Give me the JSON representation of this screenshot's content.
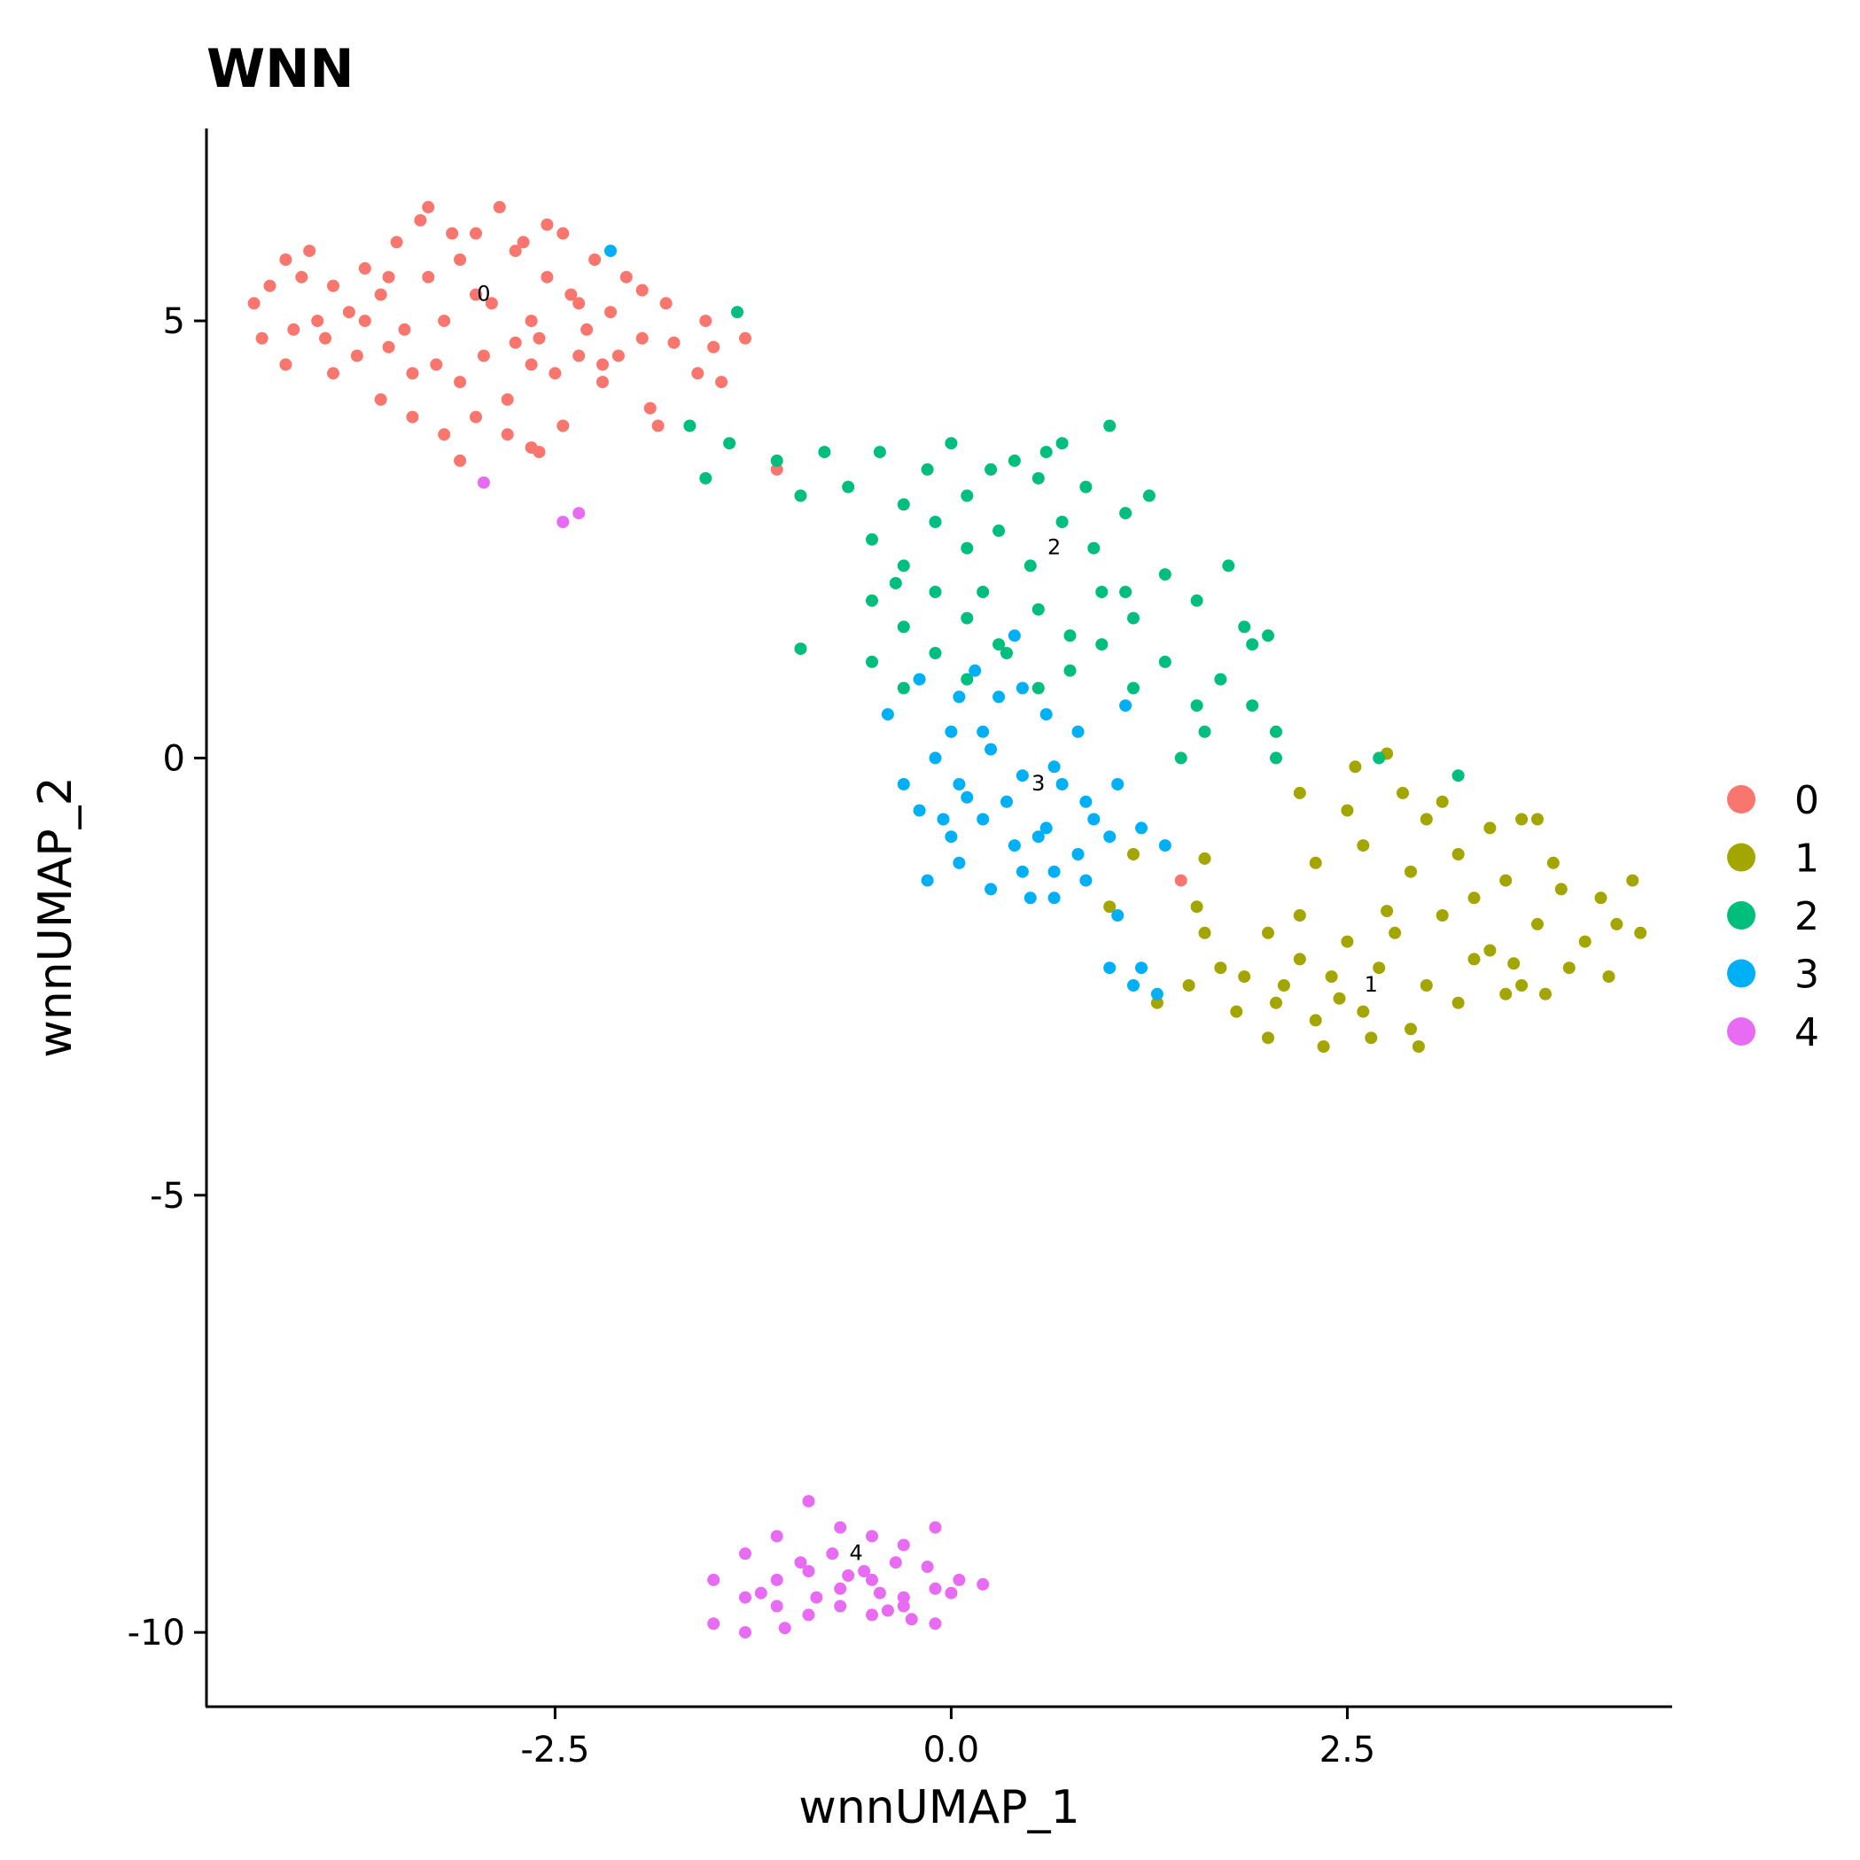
{
  "chart_data": {
    "type": "scatter",
    "title": "WNN",
    "xlabel": "wnnUMAP_1",
    "ylabel": "wnnUMAP_2",
    "xlim": [
      -4.7,
      4.55
    ],
    "ylim": [
      -10.85,
      7.2
    ],
    "x_ticks": [
      -2.5,
      0.0,
      2.5
    ],
    "x_tick_labels": [
      "-2.5",
      "0.0",
      "2.5"
    ],
    "y_ticks": [
      5,
      0,
      -5,
      -10
    ],
    "y_tick_labels": [
      "5",
      "0",
      "-5",
      "-10"
    ],
    "grid": false,
    "legend_position": "right",
    "series": [
      {
        "name": "0",
        "color": "#F8766D",
        "label_position": [
          -2.95,
          5.3
        ],
        "points": [
          [
            -4.4,
            5.2
          ],
          [
            -4.3,
            5.4
          ],
          [
            -4.2,
            5.7
          ],
          [
            -4.1,
            5.5
          ],
          [
            -4.05,
            5.8
          ],
          [
            -3.9,
            5.4
          ],
          [
            -3.8,
            5.1
          ],
          [
            -3.7,
            5.6
          ],
          [
            -3.6,
            5.3
          ],
          [
            -3.5,
            5.9
          ],
          [
            -3.45,
            4.9
          ],
          [
            -3.35,
            6.15
          ],
          [
            -3.3,
            5.5
          ],
          [
            -3.2,
            5.0
          ],
          [
            -3.1,
            5.7
          ],
          [
            -3.0,
            6.0
          ],
          [
            -2.9,
            5.2
          ],
          [
            -2.85,
            6.3
          ],
          [
            -2.75,
            5.8
          ],
          [
            -2.65,
            5.0
          ],
          [
            -2.55,
            5.5
          ],
          [
            -2.45,
            6.0
          ],
          [
            -2.35,
            5.2
          ],
          [
            -2.25,
            5.7
          ],
          [
            -2.15,
            5.1
          ],
          [
            -2.05,
            5.5
          ],
          [
            -1.95,
            5.35
          ],
          [
            -1.8,
            5.2
          ],
          [
            -4.35,
            4.8
          ],
          [
            -4.15,
            4.9
          ],
          [
            -3.95,
            4.8
          ],
          [
            -3.75,
            4.6
          ],
          [
            -3.55,
            4.7
          ],
          [
            -3.4,
            4.4
          ],
          [
            -3.25,
            4.5
          ],
          [
            -3.1,
            4.3
          ],
          [
            -2.95,
            4.6
          ],
          [
            -2.8,
            4.1
          ],
          [
            -2.65,
            4.5
          ],
          [
            -2.5,
            4.4
          ],
          [
            -2.35,
            4.6
          ],
          [
            -2.2,
            4.3
          ],
          [
            -4.2,
            4.5
          ],
          [
            -3.9,
            4.4
          ],
          [
            -3.6,
            4.1
          ],
          [
            -3.4,
            3.9
          ],
          [
            -3.2,
            3.7
          ],
          [
            -3.0,
            3.9
          ],
          [
            -2.8,
            3.7
          ],
          [
            -2.6,
            3.5
          ],
          [
            -2.45,
            3.8
          ],
          [
            -3.1,
            3.4
          ],
          [
            -2.65,
            3.55
          ],
          [
            -2.2,
            4.5
          ],
          [
            -2.1,
            4.6
          ],
          [
            -1.95,
            4.8
          ],
          [
            -1.9,
            4.0
          ],
          [
            -1.75,
            4.75
          ],
          [
            -1.6,
            4.4
          ],
          [
            -1.5,
            4.7
          ],
          [
            -1.45,
            4.3
          ],
          [
            -1.3,
            4.8
          ],
          [
            -1.55,
            5.0
          ],
          [
            -1.85,
            3.8
          ],
          [
            -3.3,
            6.3
          ],
          [
            -3.15,
            6.0
          ],
          [
            -3.0,
            5.3
          ],
          [
            -2.7,
            5.9
          ],
          [
            -2.55,
            6.1
          ],
          [
            -2.4,
            5.3
          ],
          [
            -2.3,
            4.9
          ],
          [
            -4.0,
            5.0
          ],
          [
            -3.7,
            5.0
          ],
          [
            -3.55,
            5.5
          ],
          [
            -2.75,
            4.75
          ],
          [
            -2.6,
            4.8
          ],
          [
            -1.1,
            3.3
          ],
          [
            1.45,
            -1.4
          ]
        ]
      },
      {
        "name": "1",
        "color": "#A3A500",
        "label_position": [
          2.65,
          -2.6
        ],
        "points": [
          [
            2.2,
            -0.4
          ],
          [
            2.55,
            -0.1
          ],
          [
            2.75,
            0.05
          ],
          [
            2.85,
            -0.4
          ],
          [
            3.1,
            -0.5
          ],
          [
            3.4,
            -0.8
          ],
          [
            3.6,
            -0.7
          ],
          [
            2.3,
            -1.2
          ],
          [
            2.6,
            -1.0
          ],
          [
            2.9,
            -1.3
          ],
          [
            3.2,
            -1.1
          ],
          [
            3.5,
            -1.4
          ],
          [
            3.8,
            -1.2
          ],
          [
            4.1,
            -1.6
          ],
          [
            4.3,
            -1.4
          ],
          [
            2.0,
            -2.0
          ],
          [
            2.2,
            -2.3
          ],
          [
            2.5,
            -2.1
          ],
          [
            2.8,
            -2.0
          ],
          [
            3.1,
            -1.8
          ],
          [
            3.4,
            -2.2
          ],
          [
            3.7,
            -1.9
          ],
          [
            4.0,
            -2.1
          ],
          [
            4.2,
            -1.9
          ],
          [
            4.35,
            -2.0
          ],
          [
            1.85,
            -2.5
          ],
          [
            2.1,
            -2.6
          ],
          [
            2.4,
            -2.5
          ],
          [
            2.7,
            -2.4
          ],
          [
            3.0,
            -2.6
          ],
          [
            3.3,
            -2.3
          ],
          [
            3.6,
            -2.6
          ],
          [
            3.9,
            -2.4
          ],
          [
            4.15,
            -2.5
          ],
          [
            1.8,
            -2.9
          ],
          [
            2.05,
            -2.8
          ],
          [
            2.3,
            -3.0
          ],
          [
            2.6,
            -2.9
          ],
          [
            2.9,
            -3.1
          ],
          [
            3.2,
            -2.8
          ],
          [
            3.5,
            -2.7
          ],
          [
            3.75,
            -2.7
          ],
          [
            2.0,
            -3.2
          ],
          [
            2.35,
            -3.3
          ],
          [
            2.65,
            -3.2
          ],
          [
            2.95,
            -3.3
          ],
          [
            1.55,
            -1.7
          ],
          [
            1.6,
            -2.0
          ],
          [
            1.7,
            -2.4
          ],
          [
            1.5,
            -2.6
          ],
          [
            1.3,
            -2.8
          ],
          [
            1.15,
            -1.1
          ],
          [
            1.0,
            -1.7
          ],
          [
            2.75,
            -1.75
          ],
          [
            3.0,
            -0.7
          ],
          [
            3.3,
            -1.6
          ],
          [
            3.55,
            -2.35
          ],
          [
            2.45,
            -2.75
          ],
          [
            2.2,
            -1.8
          ],
          [
            3.85,
            -1.5
          ],
          [
            1.6,
            -1.15
          ],
          [
            2.5,
            -0.6
          ],
          [
            3.7,
            -0.7
          ]
        ]
      },
      {
        "name": "2",
        "color": "#00BF7D",
        "label_position": [
          0.65,
          2.4
        ],
        "points": [
          [
            -1.35,
            5.1
          ],
          [
            -1.65,
            3.8
          ],
          [
            -1.4,
            3.6
          ],
          [
            -1.55,
            3.2
          ],
          [
            -1.1,
            3.4
          ],
          [
            -0.95,
            3.0
          ],
          [
            -0.8,
            3.5
          ],
          [
            -0.65,
            3.1
          ],
          [
            -0.45,
            3.5
          ],
          [
            -0.3,
            2.9
          ],
          [
            -0.15,
            3.3
          ],
          [
            0.0,
            3.6
          ],
          [
            0.1,
            3.0
          ],
          [
            0.25,
            3.3
          ],
          [
            0.4,
            3.4
          ],
          [
            0.55,
            3.2
          ],
          [
            0.7,
            3.6
          ],
          [
            0.85,
            3.1
          ],
          [
            1.0,
            3.8
          ],
          [
            -0.5,
            2.5
          ],
          [
            -0.3,
            2.2
          ],
          [
            -0.1,
            2.7
          ],
          [
            0.1,
            2.4
          ],
          [
            0.3,
            2.6
          ],
          [
            0.5,
            2.2
          ],
          [
            0.7,
            2.7
          ],
          [
            0.9,
            2.4
          ],
          [
            1.1,
            2.8
          ],
          [
            1.25,
            3.0
          ],
          [
            -0.5,
            1.8
          ],
          [
            -0.3,
            1.5
          ],
          [
            -0.1,
            1.9
          ],
          [
            0.1,
            1.6
          ],
          [
            0.3,
            1.3
          ],
          [
            0.55,
            1.7
          ],
          [
            0.75,
            1.4
          ],
          [
            0.95,
            1.9
          ],
          [
            1.15,
            1.6
          ],
          [
            1.35,
            2.1
          ],
          [
            1.55,
            1.8
          ],
          [
            1.75,
            2.2
          ],
          [
            1.85,
            1.5
          ],
          [
            -0.5,
            1.1
          ],
          [
            -0.3,
            0.8
          ],
          [
            -0.1,
            1.2
          ],
          [
            0.1,
            0.9
          ],
          [
            0.35,
            1.2
          ],
          [
            0.55,
            0.8
          ],
          [
            0.75,
            1.0
          ],
          [
            0.95,
            1.3
          ],
          [
            1.15,
            0.8
          ],
          [
            1.35,
            1.1
          ],
          [
            1.55,
            0.6
          ],
          [
            1.7,
            0.9
          ],
          [
            1.9,
            0.6
          ],
          [
            1.6,
            0.3
          ],
          [
            1.45,
            0.0
          ],
          [
            2.05,
            0.3
          ],
          [
            2.05,
            0.0
          ],
          [
            1.9,
            1.3
          ],
          [
            2.0,
            1.4
          ],
          [
            -0.95,
            1.25
          ],
          [
            0.6,
            3.5
          ],
          [
            1.1,
            1.9
          ],
          [
            -0.35,
            2.0
          ],
          [
            0.2,
            1.9
          ],
          [
            3.2,
            -0.2
          ],
          [
            2.7,
            0.0
          ]
        ]
      },
      {
        "name": "3",
        "color": "#00B0F6",
        "label_position": [
          0.55,
          -0.3
        ],
        "points": [
          [
            -0.4,
            0.5
          ],
          [
            -0.2,
            0.9
          ],
          [
            0.05,
            0.7
          ],
          [
            0.2,
            0.3
          ],
          [
            0.45,
            0.8
          ],
          [
            0.6,
            0.5
          ],
          [
            0.8,
            0.3
          ],
          [
            1.1,
            0.6
          ],
          [
            -0.1,
            0.0
          ],
          [
            0.05,
            -0.3
          ],
          [
            0.25,
            0.1
          ],
          [
            0.45,
            -0.2
          ],
          [
            0.65,
            -0.1
          ],
          [
            0.85,
            -0.5
          ],
          [
            1.05,
            -0.3
          ],
          [
            -0.2,
            -0.6
          ],
          [
            0.0,
            -0.9
          ],
          [
            0.2,
            -0.7
          ],
          [
            0.4,
            -1.0
          ],
          [
            0.6,
            -0.8
          ],
          [
            0.8,
            -1.1
          ],
          [
            1.0,
            -0.9
          ],
          [
            1.2,
            -0.8
          ],
          [
            1.35,
            -1.0
          ],
          [
            -0.15,
            -1.4
          ],
          [
            0.05,
            -1.2
          ],
          [
            0.25,
            -1.5
          ],
          [
            0.45,
            -1.3
          ],
          [
            0.65,
            -1.6
          ],
          [
            0.85,
            -1.4
          ],
          [
            1.05,
            -1.8
          ],
          [
            0.35,
            -0.5
          ],
          [
            0.55,
            -0.9
          ],
          [
            -0.3,
            -0.3
          ],
          [
            0.3,
            0.7
          ],
          [
            0.15,
            1.0
          ],
          [
            0.0,
            0.3
          ],
          [
            0.1,
            -0.45
          ],
          [
            0.7,
            -0.3
          ],
          [
            0.9,
            -0.7
          ],
          [
            0.5,
            -1.6
          ],
          [
            0.4,
            1.4
          ],
          [
            -2.15,
            5.8
          ],
          [
            1.0,
            -2.4
          ],
          [
            1.2,
            -2.4
          ],
          [
            1.3,
            -2.7
          ],
          [
            1.15,
            -2.6
          ],
          [
            0.65,
            -1.3
          ],
          [
            -0.05,
            -0.7
          ]
        ]
      },
      {
        "name": "4",
        "color": "#E76BF3",
        "label_position": [
          -0.6,
          -9.1
        ],
        "points": [
          [
            -2.95,
            3.15
          ],
          [
            -2.45,
            2.7
          ],
          [
            -2.35,
            2.8
          ],
          [
            -0.9,
            -8.5
          ],
          [
            -0.7,
            -8.8
          ],
          [
            -0.5,
            -8.9
          ],
          [
            -0.3,
            -9.0
          ],
          [
            -0.1,
            -8.8
          ],
          [
            -1.1,
            -8.9
          ],
          [
            -0.95,
            -9.2
          ],
          [
            -0.75,
            -9.1
          ],
          [
            -0.55,
            -9.3
          ],
          [
            -0.35,
            -9.2
          ],
          [
            -0.15,
            -9.25
          ],
          [
            0.05,
            -9.4
          ],
          [
            0.2,
            -9.45
          ],
          [
            -1.3,
            -9.1
          ],
          [
            -1.1,
            -9.4
          ],
          [
            -0.9,
            -9.3
          ],
          [
            -0.7,
            -9.5
          ],
          [
            -0.5,
            -9.4
          ],
          [
            -0.3,
            -9.6
          ],
          [
            -0.1,
            -9.5
          ],
          [
            -1.5,
            -9.4
          ],
          [
            -1.3,
            -9.6
          ],
          [
            -1.1,
            -9.7
          ],
          [
            -0.9,
            -9.8
          ],
          [
            -0.7,
            -9.7
          ],
          [
            -0.5,
            -9.8
          ],
          [
            -0.3,
            -9.7
          ],
          [
            -0.1,
            -9.9
          ],
          [
            -1.5,
            -9.9
          ],
          [
            -1.3,
            -10.0
          ],
          [
            -1.05,
            -9.95
          ],
          [
            -0.85,
            -9.6
          ],
          [
            -0.45,
            -9.55
          ],
          [
            -0.25,
            -9.85
          ],
          [
            0.0,
            -9.55
          ],
          [
            -1.2,
            -9.55
          ],
          [
            -0.65,
            -9.35
          ],
          [
            -0.4,
            -9.75
          ]
        ]
      }
    ]
  }
}
